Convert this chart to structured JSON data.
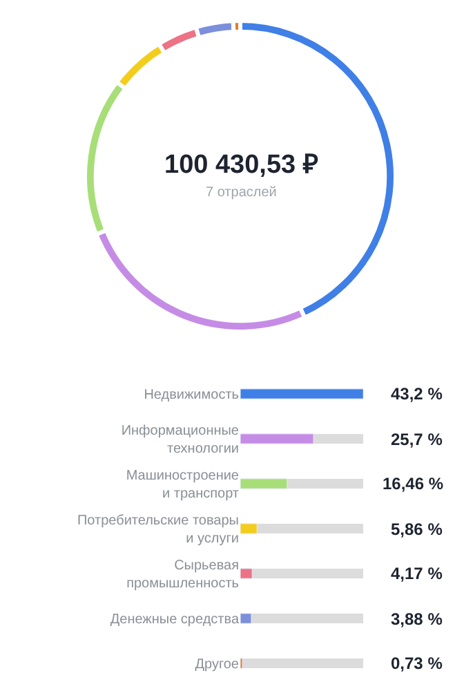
{
  "chart_data": [
    {
      "type": "donut",
      "categories": [
        null,
        null,
        null,
        null,
        null,
        null,
        null
      ],
      "values": [
        43.2,
        25.7,
        16.46,
        5.86,
        4.17,
        3.88,
        0.73
      ],
      "colors": [
        "#3f7fe6",
        "#c58ce6",
        "#a8de78",
        "#f2cd1c",
        "#ec7286",
        "#7b8fdb",
        "#e57a2a"
      ],
      "annotations": [
        "100 430,53 ₽",
        "7 отраслей"
      ]
    },
    {
      "type": "bar",
      "orientation": "horizontal",
      "categories": [
        "Недвижимость",
        "Информационные\nтехнологии",
        "Машиностроение\nи транспорт",
        "Потребительские товары\nи услуги",
        "Сырьевая\nпромышленность",
        "Денежные средства",
        "Другое"
      ],
      "values": [
        43.2,
        25.7,
        16.46,
        5.86,
        4.17,
        3.88,
        0.73
      ],
      "colors": [
        "#3f7fe6",
        "#c58ce6",
        "#a8de78",
        "#f2cd1c",
        "#ec7286",
        "#7b8fdb",
        "#e57a2a"
      ],
      "value_labels": [
        "43,2 %",
        "25,7 %",
        "16,46 %",
        "5,86 %",
        "4,17 %",
        "3,88 %",
        "0,73 %"
      ]
    }
  ]
}
